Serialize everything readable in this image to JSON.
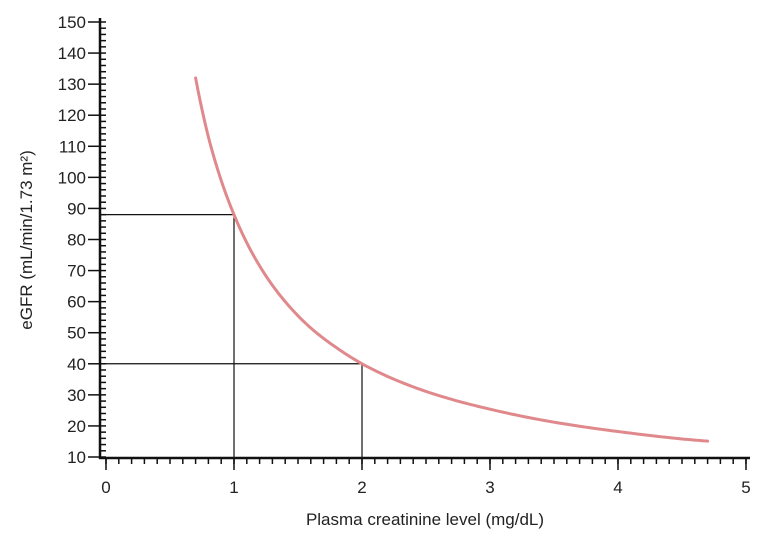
{
  "chart_data": {
    "type": "line",
    "title": "",
    "xlabel": "Plasma creatinine level (mg/dL)",
    "ylabel": "eGFR (mL/min/1.73 m²)",
    "xlim": [
      0,
      5
    ],
    "ylim": [
      10,
      150
    ],
    "x_ticks": [
      0,
      1,
      2,
      3,
      4,
      5
    ],
    "y_ticks": [
      10,
      20,
      30,
      40,
      50,
      60,
      70,
      80,
      90,
      100,
      110,
      120,
      130,
      140,
      150
    ],
    "x_minor_step": 0.1,
    "y_minor_step": 2,
    "grid": false,
    "series": [
      {
        "color": "#e0898c",
        "x": [
          0.7,
          0.8,
          0.9,
          1.0,
          1.2,
          1.4,
          1.6,
          1.8,
          2.0,
          2.5,
          3.0,
          3.5,
          4.0,
          4.5,
          4.7
        ],
        "y": [
          132,
          113,
          99,
          88,
          71.5,
          60,
          51.5,
          45.2,
          40,
          31.1,
          25.4,
          21.2,
          18.2,
          15.8,
          15.1
        ]
      }
    ],
    "reference_lines": [
      {
        "x": 1,
        "y": 88
      },
      {
        "x": 2,
        "y": 40
      }
    ]
  }
}
